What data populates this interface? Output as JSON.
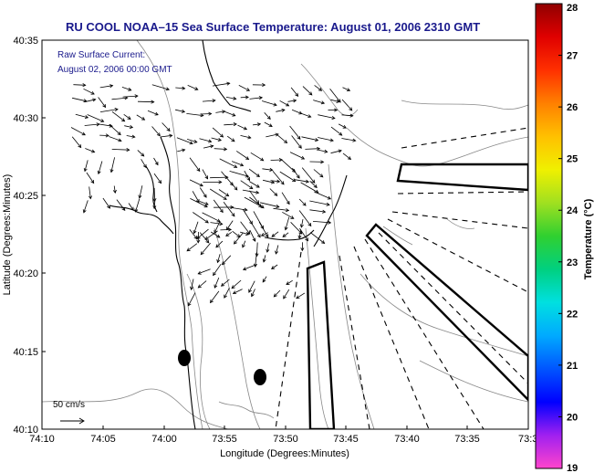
{
  "title": "RU COOL  NOAA–15  Sea Surface Temperature:  August 01, 2006 2310 GMT",
  "annotation_line1": "Raw Surface Current:",
  "annotation_line2": "August 02, 2006 00:00 GMT",
  "scale_label": "50 cm/s",
  "xlabel": "Longitude (Degrees:Minutes)",
  "ylabel": "Latitude (Degrees:Minutes)",
  "colorbar_label": "Temperature (°C)",
  "x_ticks": [
    "74:10",
    "74:05",
    "74:00",
    "73:55",
    "73:50",
    "73:45",
    "73:40",
    "73:35",
    "73:3"
  ],
  "y_ticks": [
    "40:35",
    "40:30",
    "40:25",
    "40:20",
    "40:15",
    "40:10"
  ],
  "colorbar": {
    "ticks": [
      "28",
      "27",
      "26",
      "25",
      "24",
      "23",
      "22",
      "21",
      "20",
      "19"
    ],
    "colors": [
      "#ff44cc",
      "#a020f0",
      "#0000ff",
      "#0055ff",
      "#00aaff",
      "#00e0e0",
      "#00d080",
      "#30d030",
      "#a0e020",
      "#f0f000",
      "#ffc000",
      "#ff8000",
      "#ff3000",
      "#e00000",
      "#900000"
    ]
  },
  "map": {
    "coastline_color": "#000000",
    "contour_color": "#888888",
    "vector_color": "#000000"
  }
}
